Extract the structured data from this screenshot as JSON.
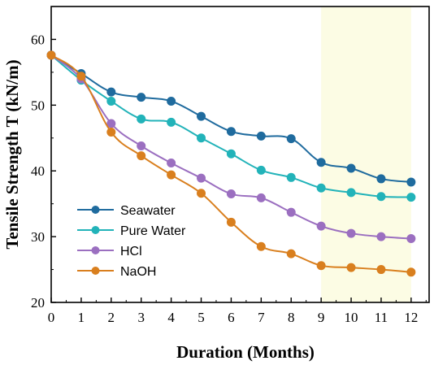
{
  "chart_data": {
    "type": "line",
    "xlabel": "Duration (Months)",
    "ylabel": "Tensile Strength T (kN/m)",
    "xlim": [
      0,
      12.6
    ],
    "ylim": [
      20,
      65
    ],
    "x_ticks": [
      0,
      1,
      2,
      3,
      4,
      5,
      6,
      7,
      8,
      9,
      10,
      11,
      12
    ],
    "y_ticks": [
      20,
      30,
      40,
      50,
      60
    ],
    "x": [
      0,
      1,
      2,
      3,
      4,
      5,
      6,
      7,
      8,
      9,
      10,
      11,
      12
    ],
    "highlight_region": {
      "x_from": 9,
      "x_to": 12,
      "color": "#fcfce4"
    },
    "legend_position": "bottom-left",
    "series": [
      {
        "name": "Seawater",
        "color": "#1f6b9e",
        "values": [
          57.6,
          54.8,
          52.0,
          51.2,
          50.6,
          48.3,
          46.0,
          45.3,
          44.9,
          41.3,
          40.4,
          38.8,
          38.3
        ]
      },
      {
        "name": "Pure Water",
        "color": "#22b3b9",
        "values": [
          57.6,
          53.8,
          50.6,
          47.9,
          47.4,
          45.0,
          42.6,
          40.1,
          39.0,
          37.4,
          36.7,
          36.1,
          36.0
        ]
      },
      {
        "name": "HCl",
        "color": "#9b6fc0",
        "values": [
          57.6,
          54.0,
          47.2,
          43.8,
          41.2,
          38.9,
          36.5,
          35.9,
          33.7,
          31.6,
          30.5,
          30.0,
          29.7
        ]
      },
      {
        "name": "NaOH",
        "color": "#d97f1e",
        "values": [
          57.6,
          54.4,
          45.9,
          42.3,
          39.4,
          36.6,
          32.2,
          28.5,
          27.4,
          25.6,
          25.3,
          25.0,
          24.6
        ]
      }
    ]
  }
}
